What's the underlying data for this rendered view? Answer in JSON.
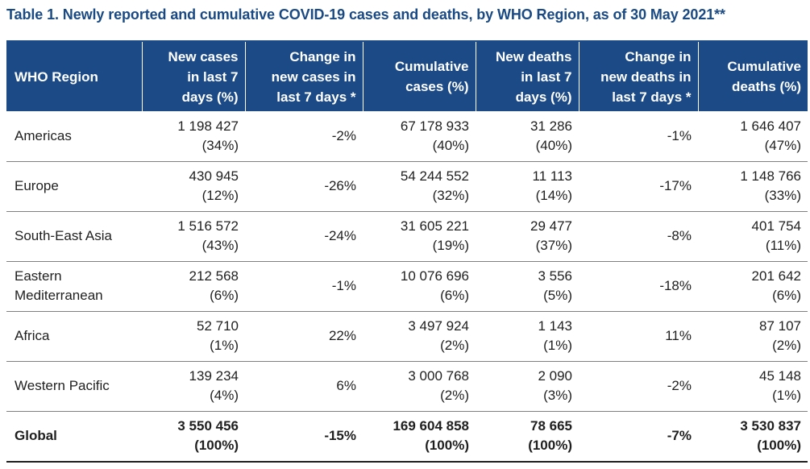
{
  "title": "Table 1. Newly reported and cumulative COVID-19 cases and deaths, by WHO Region, as of 30 May 2021**",
  "headers": [
    {
      "line1": "WHO Region",
      "line2": "",
      "line3": ""
    },
    {
      "line1": "New cases",
      "line2": "in last 7",
      "line3": "days (%)"
    },
    {
      "line1": "Change in",
      "line2": "new cases in",
      "line3": "last 7 days *"
    },
    {
      "line1": "Cumulative",
      "line2": "cases (%)",
      "line3": ""
    },
    {
      "line1": "New deaths",
      "line2": "in last 7",
      "line3": "days (%)"
    },
    {
      "line1": "Change in",
      "line2": "new deaths in",
      "line3": "last 7 days *"
    },
    {
      "line1": "Cumulative",
      "line2": "deaths (%)",
      "line3": ""
    }
  ],
  "rows": [
    {
      "region": "Americas",
      "new_cases": "1 198 427",
      "new_cases_pct": "(34%)",
      "change_cases": "-2%",
      "cum_cases": "67 178 933",
      "cum_cases_pct": "(40%)",
      "new_deaths": "31 286",
      "new_deaths_pct": "(40%)",
      "change_deaths": "-1%",
      "cum_deaths": "1 646 407",
      "cum_deaths_pct": "(47%)"
    },
    {
      "region": "Europe",
      "new_cases": "430 945",
      "new_cases_pct": "(12%)",
      "change_cases": "-26%",
      "cum_cases": "54 244 552",
      "cum_cases_pct": "(32%)",
      "new_deaths": "11 113",
      "new_deaths_pct": "(14%)",
      "change_deaths": "-17%",
      "cum_deaths": "1 148 766",
      "cum_deaths_pct": "(33%)"
    },
    {
      "region": "South-East Asia",
      "new_cases": "1 516 572",
      "new_cases_pct": "(43%)",
      "change_cases": "-24%",
      "cum_cases": "31 605 221",
      "cum_cases_pct": "(19%)",
      "new_deaths": "29 477",
      "new_deaths_pct": "(37%)",
      "change_deaths": "-8%",
      "cum_deaths": "401 754",
      "cum_deaths_pct": "(11%)"
    },
    {
      "region": "Eastern Mediterranean",
      "new_cases": "212 568",
      "new_cases_pct": "(6%)",
      "change_cases": "-1%",
      "cum_cases": "10 076 696",
      "cum_cases_pct": "(6%)",
      "new_deaths": "3 556",
      "new_deaths_pct": "(5%)",
      "change_deaths": "-18%",
      "cum_deaths": "201 642",
      "cum_deaths_pct": "(6%)"
    },
    {
      "region": "Africa",
      "new_cases": "52 710",
      "new_cases_pct": "(1%)",
      "change_cases": "22%",
      "cum_cases": "3 497 924",
      "cum_cases_pct": "(2%)",
      "new_deaths": "1 143",
      "new_deaths_pct": "(1%)",
      "change_deaths": "11%",
      "cum_deaths": "87 107",
      "cum_deaths_pct": "(2%)"
    },
    {
      "region": "Western Pacific",
      "new_cases": "139 234",
      "new_cases_pct": "(4%)",
      "change_cases": "6%",
      "cum_cases": "3 000 768",
      "cum_cases_pct": "(2%)",
      "new_deaths": "2 090",
      "new_deaths_pct": "(3%)",
      "change_deaths": "-2%",
      "cum_deaths": "45 148",
      "cum_deaths_pct": "(1%)"
    }
  ],
  "global": {
    "region": "Global",
    "new_cases": "3 550 456",
    "new_cases_pct": "(100%)",
    "change_cases": "-15%",
    "cum_cases": "169 604 858",
    "cum_cases_pct": "(100%)",
    "new_deaths": "78 665",
    "new_deaths_pct": "(100%)",
    "change_deaths": "-7%",
    "cum_deaths": "3 530 837",
    "cum_deaths_pct": "(100%)"
  },
  "colors": {
    "header_bg": "#1b4a86",
    "title": "#1a4a83",
    "header_text": "#ffffff"
  }
}
